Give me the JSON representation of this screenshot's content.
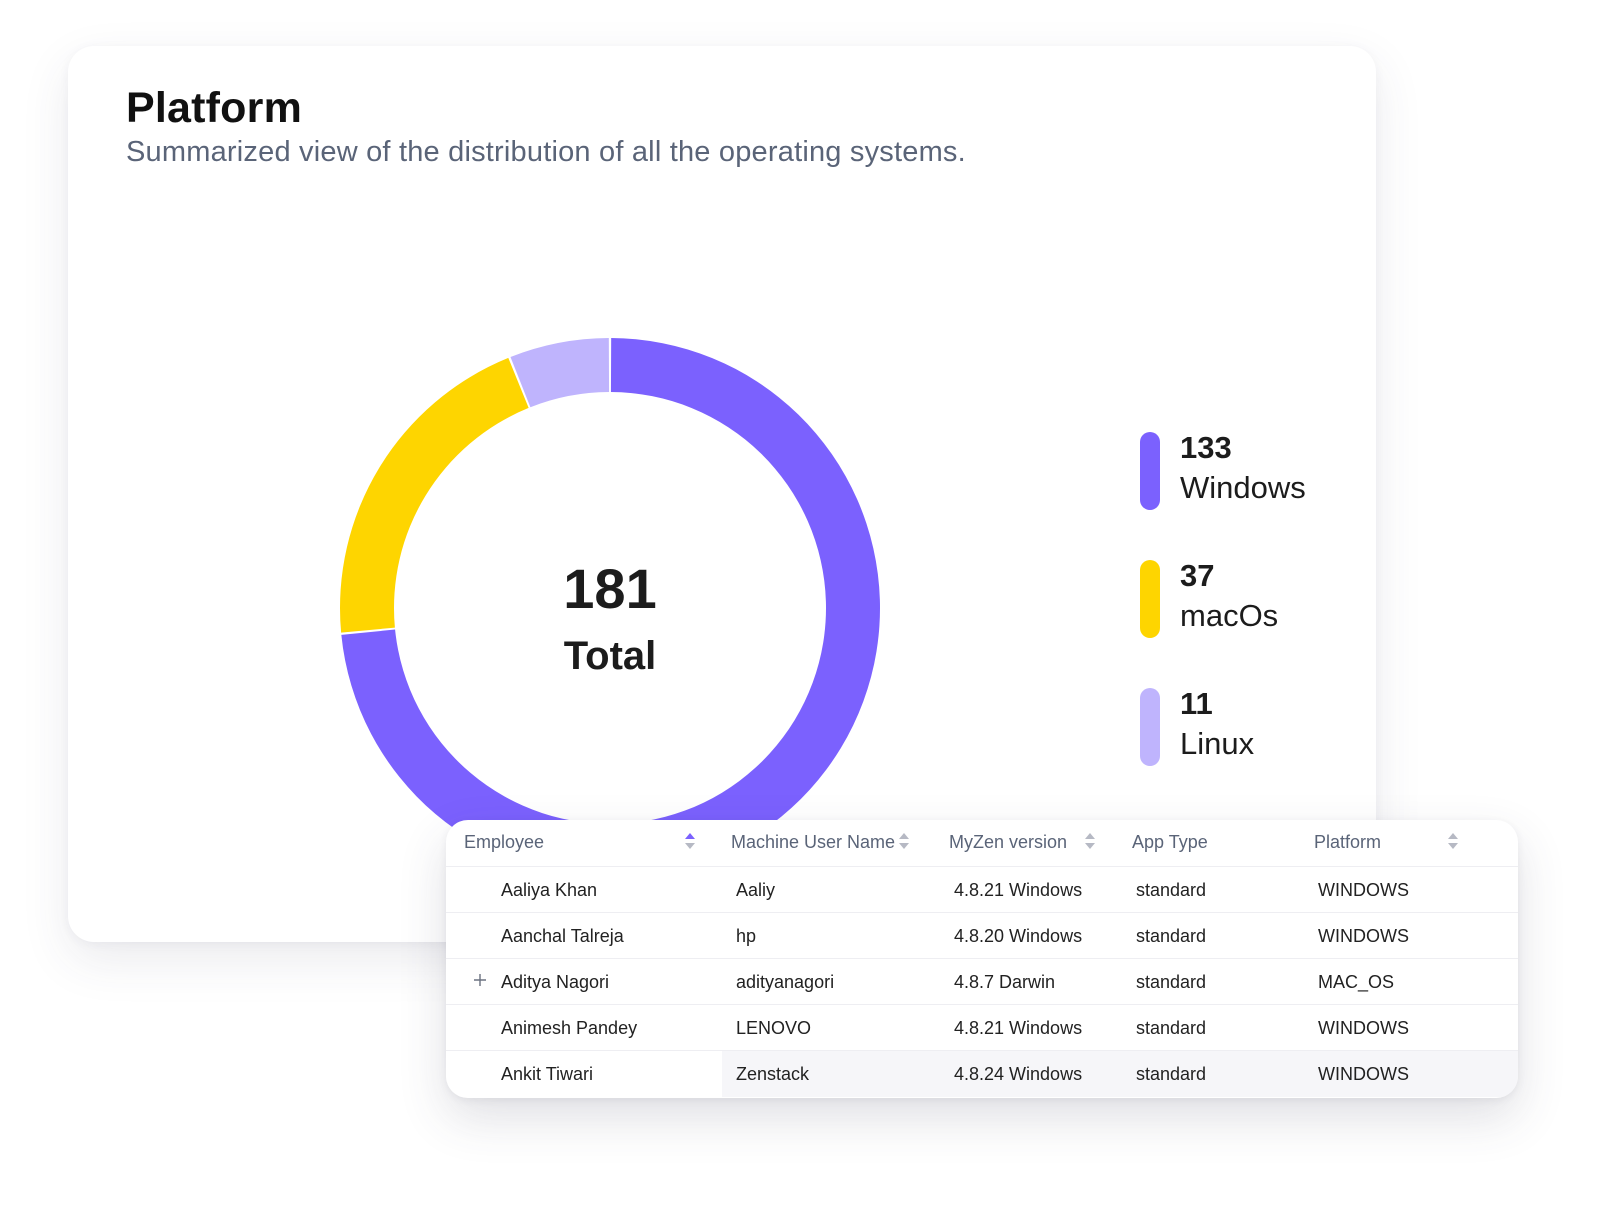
{
  "card": {
    "title": "Platform",
    "subtitle": "Summarized view of the distribution of all the operating systems."
  },
  "chart_data": {
    "type": "pie",
    "variant": "donut",
    "title": "Platform",
    "subtitle": "Summarized view of the distribution of all the operating systems.",
    "total_value": "181",
    "total_label": "Total",
    "legend_placement": "right",
    "slices": [
      {
        "label": "Windows",
        "value": 133,
        "display_value": "133",
        "color": "#7b61fe"
      },
      {
        "label": "macOs",
        "value": 37,
        "display_value": "37",
        "color": "#fed500"
      },
      {
        "label": "Linux",
        "value": 11,
        "display_value": "11",
        "color": "#bfb4fd"
      }
    ]
  },
  "table": {
    "columns": [
      {
        "label": "Employee",
        "sort_state": "active",
        "sort_icon": "sort-icon"
      },
      {
        "label": "Machine User Name",
        "sort_state": "none",
        "sort_icon": "sort-icon"
      },
      {
        "label": "MyZen version",
        "sort_state": "none",
        "sort_icon": "sort-icon"
      },
      {
        "label": "App Type",
        "sort_state": "none",
        "sort_icon": ""
      },
      {
        "label": "Platform",
        "sort_state": "none",
        "sort_icon": "sort-icon"
      }
    ],
    "rows": [
      {
        "employee": "Aaliya Khan",
        "machine_user": "Aaliy",
        "version": "4.8.21 Windows",
        "app_type": "standard",
        "platform": "WINDOWS",
        "expandable": false
      },
      {
        "employee": "Aanchal Talreja",
        "machine_user": "hp",
        "version": "4.8.20 Windows",
        "app_type": "standard",
        "platform": "WINDOWS",
        "expandable": false
      },
      {
        "employee": "Aditya Nagori",
        "machine_user": "adityanagori",
        "version": "4.8.7 Darwin",
        "app_type": "standard",
        "platform": "MAC_OS",
        "expandable": true
      },
      {
        "employee": "Animesh Pandey",
        "machine_user": "LENOVO",
        "version": "4.8.21 Windows",
        "app_type": "standard",
        "platform": "WINDOWS",
        "expandable": false
      },
      {
        "employee": "Ankit Tiwari",
        "machine_user": "Zenstack",
        "version": "4.8.24 Windows",
        "app_type": "standard",
        "platform": "WINDOWS",
        "expandable": false
      }
    ],
    "colors": {
      "sort_active": "#7b61fe",
      "sort_inactive": "#b6b9c4"
    }
  }
}
